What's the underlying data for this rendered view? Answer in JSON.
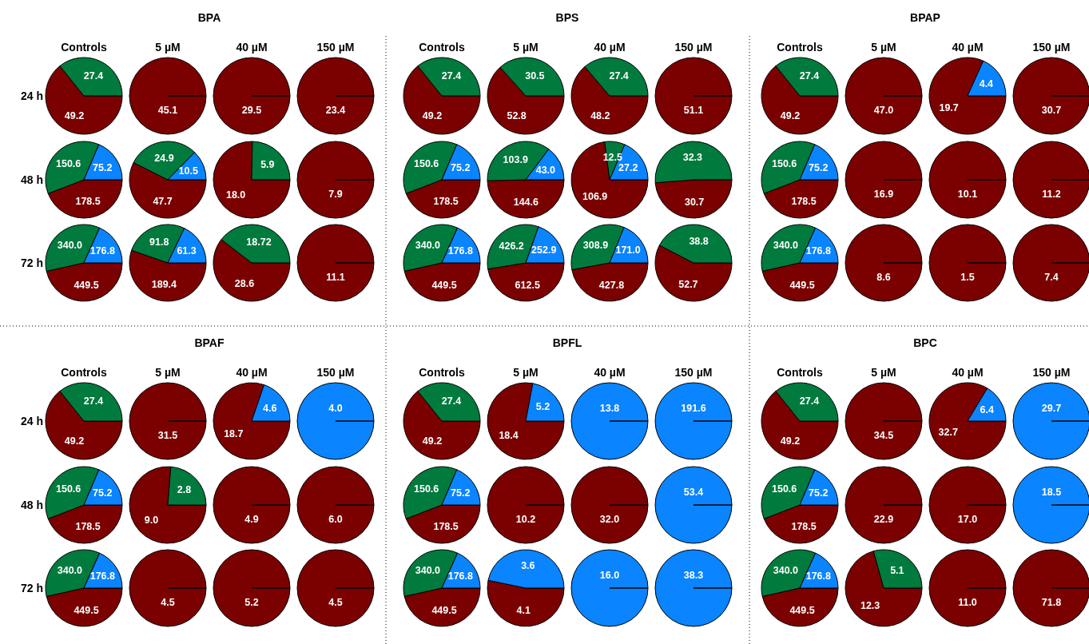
{
  "chart_data": [
    {
      "type": "pie",
      "title": "BPA",
      "annotations": [
        "Controls",
        "5 µM",
        "40 µM",
        "150 µM",
        "24 h",
        "48 h",
        "72 h"
      ],
      "categories": [
        null,
        null,
        null
      ],
      "colors": [
        "#7b0000",
        "#007a3d",
        "#0a84ff"
      ],
      "series": [
        {
          "values": [
            49.2,
            27.4,
            null
          ],
          "value_labels": [
            "49.2",
            "27.4",
            null
          ]
        },
        {
          "values": [
            45.1,
            null,
            null
          ],
          "value_labels": [
            "45.1",
            null,
            null
          ]
        },
        {
          "values": [
            29.5,
            null,
            null
          ],
          "value_labels": [
            "29.5",
            null,
            null
          ]
        },
        {
          "values": [
            23.4,
            null,
            null
          ],
          "value_labels": [
            "23.4",
            null,
            null
          ]
        },
        {
          "values": [
            178.5,
            150.6,
            75.2
          ],
          "value_labels": [
            "178.5",
            "150.6",
            "75.2"
          ]
        },
        {
          "values": [
            47.7,
            24.9,
            10.5
          ],
          "value_labels": [
            "47.7",
            "24.9",
            "10.5"
          ]
        },
        {
          "values": [
            18.0,
            5.9,
            null
          ],
          "value_labels": [
            "18.0",
            "5.9",
            null
          ]
        },
        {
          "values": [
            7.9,
            null,
            null
          ],
          "value_labels": [
            "7.9",
            null,
            null
          ]
        },
        {
          "values": [
            449.5,
            340.0,
            176.8
          ],
          "value_labels": [
            "449.5",
            "340.0",
            "176.8"
          ]
        },
        {
          "values": [
            189.4,
            91.8,
            61.3
          ],
          "value_labels": [
            "189.4",
            "91.8",
            "61.3"
          ]
        },
        {
          "values": [
            28.6,
            18.72,
            null
          ],
          "value_labels": [
            "28.6",
            "18.72",
            null
          ]
        },
        {
          "values": [
            11.1,
            null,
            null
          ],
          "value_labels": [
            "11.1",
            null,
            null
          ]
        }
      ]
    },
    {
      "type": "pie",
      "title": "BPS",
      "annotations": [
        "Controls",
        "5 µM",
        "40 µM",
        "150 µM"
      ],
      "categories": [
        null,
        null,
        null
      ],
      "colors": [
        "#7b0000",
        "#007a3d",
        "#0a84ff"
      ],
      "series": [
        {
          "values": [
            49.2,
            27.4,
            null
          ],
          "value_labels": [
            "49.2",
            "27.4",
            null
          ]
        },
        {
          "values": [
            52.8,
            30.5,
            null
          ],
          "value_labels": [
            "52.8",
            "30.5",
            null
          ]
        },
        {
          "values": [
            48.2,
            27.4,
            null
          ],
          "value_labels": [
            "48.2",
            "27.4",
            null
          ]
        },
        {
          "values": [
            51.1,
            null,
            null
          ],
          "value_labels": [
            "51.1",
            null,
            null
          ]
        },
        {
          "values": [
            178.5,
            150.6,
            75.2
          ],
          "value_labels": [
            "178.5",
            "150.6",
            "75.2"
          ]
        },
        {
          "values": [
            144.6,
            103.9,
            43.0
          ],
          "value_labels": [
            "144.6",
            "103.9",
            "43.0"
          ]
        },
        {
          "values": [
            106.9,
            12.5,
            27.2
          ],
          "value_labels": [
            "106.9",
            "12.5",
            "27.2"
          ]
        },
        {
          "values": [
            30.7,
            32.3,
            null
          ],
          "value_labels": [
            "30.7",
            "32.3",
            null
          ]
        },
        {
          "values": [
            449.5,
            340.0,
            176.8
          ],
          "value_labels": [
            "449.5",
            "340.0",
            "176.8"
          ]
        },
        {
          "values": [
            612.5,
            426.2,
            252.9
          ],
          "value_labels": [
            "612.5",
            "426.2",
            "252.9"
          ]
        },
        {
          "values": [
            427.8,
            308.9,
            171.0
          ],
          "value_labels": [
            "427.8",
            "308.9",
            "171.0"
          ]
        },
        {
          "values": [
            52.7,
            38.8,
            null
          ],
          "value_labels": [
            "52.7",
            "38.8",
            null
          ]
        }
      ]
    },
    {
      "type": "pie",
      "title": "BPAP",
      "annotations": [
        "Controls",
        "5 µM",
        "40 µM",
        "150 µM"
      ],
      "categories": [
        null,
        null,
        null
      ],
      "colors": [
        "#7b0000",
        "#007a3d",
        "#0a84ff"
      ],
      "series": [
        {
          "values": [
            49.2,
            27.4,
            null
          ],
          "value_labels": [
            "49.2",
            "27.4",
            null
          ]
        },
        {
          "values": [
            47.0,
            null,
            null
          ],
          "value_labels": [
            "47.0",
            null,
            null
          ]
        },
        {
          "values": [
            19.7,
            null,
            4.4
          ],
          "value_labels": [
            "19.7",
            null,
            "4.4"
          ]
        },
        {
          "values": [
            30.7,
            null,
            null
          ],
          "value_labels": [
            "30.7",
            null,
            null
          ]
        },
        {
          "values": [
            178.5,
            150.6,
            75.2
          ],
          "value_labels": [
            "178.5",
            "150.6",
            "75.2"
          ]
        },
        {
          "values": [
            16.9,
            null,
            null
          ],
          "value_labels": [
            "16.9",
            null,
            null
          ]
        },
        {
          "values": [
            10.1,
            null,
            null
          ],
          "value_labels": [
            "10.1",
            null,
            null
          ]
        },
        {
          "values": [
            11.2,
            null,
            null
          ],
          "value_labels": [
            "11.2",
            null,
            null
          ]
        },
        {
          "values": [
            449.5,
            340.0,
            176.8
          ],
          "value_labels": [
            "449.5",
            "340.0",
            "176.8"
          ]
        },
        {
          "values": [
            8.6,
            null,
            null
          ],
          "value_labels": [
            "8.6",
            null,
            null
          ]
        },
        {
          "values": [
            1.5,
            null,
            null
          ],
          "value_labels": [
            "1.5",
            null,
            null
          ]
        },
        {
          "values": [
            7.4,
            null,
            null
          ],
          "value_labels": [
            "7.4",
            null,
            null
          ]
        }
      ]
    },
    {
      "type": "pie",
      "title": "BPAF",
      "annotations": [
        "Controls",
        "5 µM",
        "40 µM",
        "150 µM",
        "24 h",
        "48 h",
        "72 h"
      ],
      "categories": [
        null,
        null,
        null
      ],
      "colors": [
        "#7b0000",
        "#007a3d",
        "#0a84ff"
      ],
      "series": [
        {
          "values": [
            49.2,
            27.4,
            null
          ],
          "value_labels": [
            "49.2",
            "27.4",
            null
          ]
        },
        {
          "values": [
            31.5,
            null,
            null
          ],
          "value_labels": [
            "31.5",
            null,
            null
          ]
        },
        {
          "values": [
            18.7,
            null,
            4.6
          ],
          "value_labels": [
            "18.7",
            null,
            "4.6"
          ]
        },
        {
          "values": [
            null,
            null,
            4.0
          ],
          "value_labels": [
            null,
            null,
            "4.0"
          ]
        },
        {
          "values": [
            178.5,
            150.6,
            75.2
          ],
          "value_labels": [
            "178.5",
            "150.6",
            "75.2"
          ]
        },
        {
          "values": [
            9.0,
            2.8,
            null
          ],
          "value_labels": [
            "9.0",
            "2.8",
            null
          ]
        },
        {
          "values": [
            4.9,
            null,
            null
          ],
          "value_labels": [
            "4.9",
            null,
            null
          ]
        },
        {
          "values": [
            6.0,
            null,
            null
          ],
          "value_labels": [
            "6.0",
            null,
            null
          ]
        },
        {
          "values": [
            449.5,
            340.0,
            176.8
          ],
          "value_labels": [
            "449.5",
            "340.0",
            "176.8"
          ]
        },
        {
          "values": [
            4.5,
            null,
            null
          ],
          "value_labels": [
            "4.5",
            null,
            null
          ]
        },
        {
          "values": [
            5.2,
            null,
            null
          ],
          "value_labels": [
            "5.2",
            null,
            null
          ]
        },
        {
          "values": [
            4.5,
            null,
            null
          ],
          "value_labels": [
            "4.5",
            null,
            null
          ]
        }
      ]
    },
    {
      "type": "pie",
      "title": "BPFL",
      "annotations": [
        "Controls",
        "5 µM",
        "40 µM",
        "150 µM"
      ],
      "categories": [
        null,
        null,
        null
      ],
      "colors": [
        "#7b0000",
        "#007a3d",
        "#0a84ff"
      ],
      "series": [
        {
          "values": [
            49.2,
            27.4,
            null
          ],
          "value_labels": [
            "49.2",
            "27.4",
            null
          ]
        },
        {
          "values": [
            18.4,
            null,
            5.2
          ],
          "value_labels": [
            "18.4",
            null,
            "5.2"
          ]
        },
        {
          "values": [
            null,
            null,
            13.8
          ],
          "value_labels": [
            null,
            null,
            "13.8"
          ]
        },
        {
          "values": [
            null,
            null,
            191.6
          ],
          "value_labels": [
            null,
            null,
            "191.6"
          ]
        },
        {
          "values": [
            178.5,
            150.6,
            75.2
          ],
          "value_labels": [
            "178.5",
            "150.6",
            "75.2"
          ]
        },
        {
          "values": [
            10.2,
            null,
            null
          ],
          "value_labels": [
            "10.2",
            null,
            null
          ]
        },
        {
          "values": [
            32.0,
            null,
            null
          ],
          "value_labels": [
            "32.0",
            null,
            null
          ]
        },
        {
          "values": [
            null,
            null,
            53.4
          ],
          "value_labels": [
            null,
            null,
            "53.4"
          ]
        },
        {
          "values": [
            449.5,
            340.0,
            176.8
          ],
          "value_labels": [
            "449.5",
            "340.0",
            "176.8"
          ]
        },
        {
          "values": [
            4.1,
            null,
            3.6
          ],
          "value_labels": [
            "4.1",
            null,
            "3.6"
          ]
        },
        {
          "values": [
            null,
            null,
            16.0
          ],
          "value_labels": [
            null,
            null,
            "16.0"
          ]
        },
        {
          "values": [
            null,
            null,
            38.3
          ],
          "value_labels": [
            null,
            null,
            "38.3"
          ]
        }
      ]
    },
    {
      "type": "pie",
      "title": "BPC",
      "annotations": [
        "Controls",
        "5 µM",
        "40 µM",
        "150 µM"
      ],
      "categories": [
        null,
        null,
        null
      ],
      "colors": [
        "#7b0000",
        "#007a3d",
        "#0a84ff"
      ],
      "series": [
        {
          "values": [
            49.2,
            27.4,
            null
          ],
          "value_labels": [
            "49.2",
            "27.4",
            null
          ]
        },
        {
          "values": [
            34.5,
            null,
            null
          ],
          "value_labels": [
            "34.5",
            null,
            null
          ]
        },
        {
          "values": [
            32.7,
            null,
            6.4
          ],
          "value_labels": [
            "32.7",
            null,
            "6.4"
          ]
        },
        {
          "values": [
            null,
            null,
            29.7
          ],
          "value_labels": [
            null,
            null,
            "29.7"
          ]
        },
        {
          "values": [
            178.5,
            150.6,
            75.2
          ],
          "value_labels": [
            "178.5",
            "150.6",
            "75.2"
          ]
        },
        {
          "values": [
            22.9,
            null,
            null
          ],
          "value_labels": [
            "22.9",
            null,
            null
          ]
        },
        {
          "values": [
            17.0,
            null,
            null
          ],
          "value_labels": [
            "17.0",
            null,
            null
          ]
        },
        {
          "values": [
            null,
            null,
            18.5
          ],
          "value_labels": [
            null,
            null,
            "18.5"
          ]
        },
        {
          "values": [
            449.5,
            340.0,
            176.8
          ],
          "value_labels": [
            "449.5",
            "340.0",
            "176.8"
          ]
        },
        {
          "values": [
            12.3,
            5.1,
            null
          ],
          "value_labels": [
            "12.3",
            "5.1",
            null
          ]
        },
        {
          "values": [
            11.0,
            null,
            null
          ],
          "value_labels": [
            "11.0",
            null,
            null
          ]
        },
        {
          "values": [
            71.8,
            null,
            null
          ],
          "value_labels": [
            "71.8",
            null,
            null
          ]
        }
      ]
    }
  ]
}
